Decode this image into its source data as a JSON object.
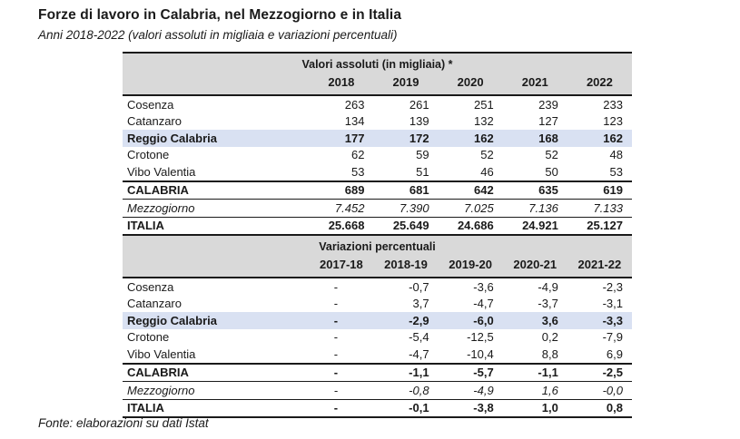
{
  "page": {
    "title": "Forze di lavoro in Calabria, nel Mezzogiorno e in Italia",
    "subtitle": "Anni 2018-2022 (valori assoluti in migliaia e variazioni percentuali)",
    "source": "Fonte: elaborazioni su dati Istat"
  },
  "colors": {
    "header_bg": "#d9d9d9",
    "highlight_bg": "#d9e1f2",
    "text": "#1a1a1a"
  },
  "chart_data": {
    "type": "table",
    "title": "Forze di lavoro in Calabria, nel Mezzogiorno e in Italia",
    "sections": [
      {
        "header": "Valori assoluti (in migliaia) *",
        "columns": [
          "2018",
          "2019",
          "2020",
          "2021",
          "2022"
        ],
        "rows": [
          {
            "label": "Cosenza",
            "values": [
              "263",
              "261",
              "251",
              "239",
              "233"
            ],
            "style": "normal"
          },
          {
            "label": "Catanzaro",
            "values": [
              "134",
              "139",
              "132",
              "127",
              "123"
            ],
            "style": "normal"
          },
          {
            "label": "Reggio Calabria",
            "values": [
              "177",
              "172",
              "162",
              "168",
              "162"
            ],
            "style": "highlight"
          },
          {
            "label": "Crotone",
            "values": [
              "62",
              "59",
              "52",
              "52",
              "48"
            ],
            "style": "normal"
          },
          {
            "label": "Vibo Valentia",
            "values": [
              "53",
              "51",
              "46",
              "50",
              "53"
            ],
            "style": "normal"
          },
          {
            "label": "CALABRIA",
            "values": [
              "689",
              "681",
              "642",
              "635",
              "619"
            ],
            "style": "bold"
          },
          {
            "label": "Mezzogiorno",
            "values": [
              "7.452",
              "7.390",
              "7.025",
              "7.136",
              "7.133"
            ],
            "style": "italic"
          },
          {
            "label": "ITALIA",
            "values": [
              "25.668",
              "25.649",
              "24.686",
              "24.921",
              "25.127"
            ],
            "style": "bold"
          }
        ]
      },
      {
        "header": "Variazioni percentuali",
        "columns": [
          "2017-18",
          "2018-19",
          "2019-20",
          "2020-21",
          "2021-22"
        ],
        "rows": [
          {
            "label": "Cosenza",
            "values": [
              "-",
              "-0,7",
              "-3,6",
              "-4,9",
              "-2,3"
            ],
            "style": "normal"
          },
          {
            "label": "Catanzaro",
            "values": [
              "-",
              "3,7",
              "-4,7",
              "-3,7",
              "-3,1"
            ],
            "style": "normal"
          },
          {
            "label": "Reggio Calabria",
            "values": [
              "-",
              "-2,9",
              "-6,0",
              "3,6",
              "-3,3"
            ],
            "style": "highlight"
          },
          {
            "label": "Crotone",
            "values": [
              "-",
              "-5,4",
              "-12,5",
              "0,2",
              "-7,9"
            ],
            "style": "normal"
          },
          {
            "label": "Vibo Valentia",
            "values": [
              "-",
              "-4,7",
              "-10,4",
              "8,8",
              "6,9"
            ],
            "style": "normal"
          },
          {
            "label": "CALABRIA",
            "values": [
              "-",
              "-1,1",
              "-5,7",
              "-1,1",
              "-2,5"
            ],
            "style": "bold"
          },
          {
            "label": "Mezzogiorno",
            "values": [
              "-",
              "-0,8",
              "-4,9",
              "1,6",
              "-0,0"
            ],
            "style": "italic"
          },
          {
            "label": "ITALIA",
            "values": [
              "-",
              "-0,1",
              "-3,8",
              "1,0",
              "0,8"
            ],
            "style": "bold"
          }
        ]
      }
    ]
  }
}
